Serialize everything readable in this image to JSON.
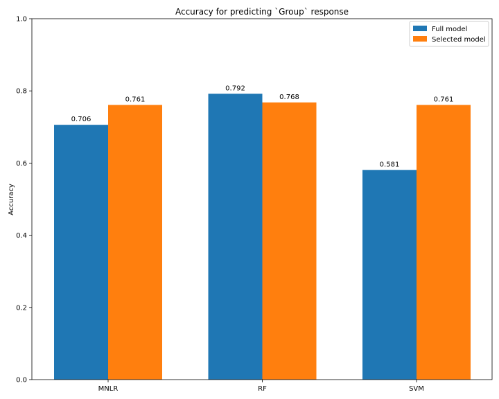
{
  "chart_data": {
    "type": "bar",
    "title": "Accuracy for predicting `Group` response",
    "xlabel": "",
    "ylabel": "Accuracy",
    "categories": [
      "MNLR",
      "RF",
      "SVM"
    ],
    "series": [
      {
        "name": "Full model",
        "values": [
          0.706,
          0.792,
          0.581
        ],
        "labels": [
          "0.706",
          "0.792",
          "0.581"
        ],
        "color": "#1f77b4"
      },
      {
        "name": "Selected model",
        "values": [
          0.761,
          0.768,
          0.761
        ],
        "labels": [
          "0.761",
          "0.768",
          "0.761"
        ],
        "color": "#ff7f0e"
      }
    ],
    "ylim": [
      0,
      1.0
    ],
    "yticks": [
      0.0,
      0.2,
      0.4,
      0.6,
      0.8,
      1.0
    ],
    "ytick_labels": [
      "0.0",
      "0.2",
      "0.4",
      "0.6",
      "0.8",
      "1.0"
    ],
    "grid": false,
    "legend": "top-right"
  }
}
